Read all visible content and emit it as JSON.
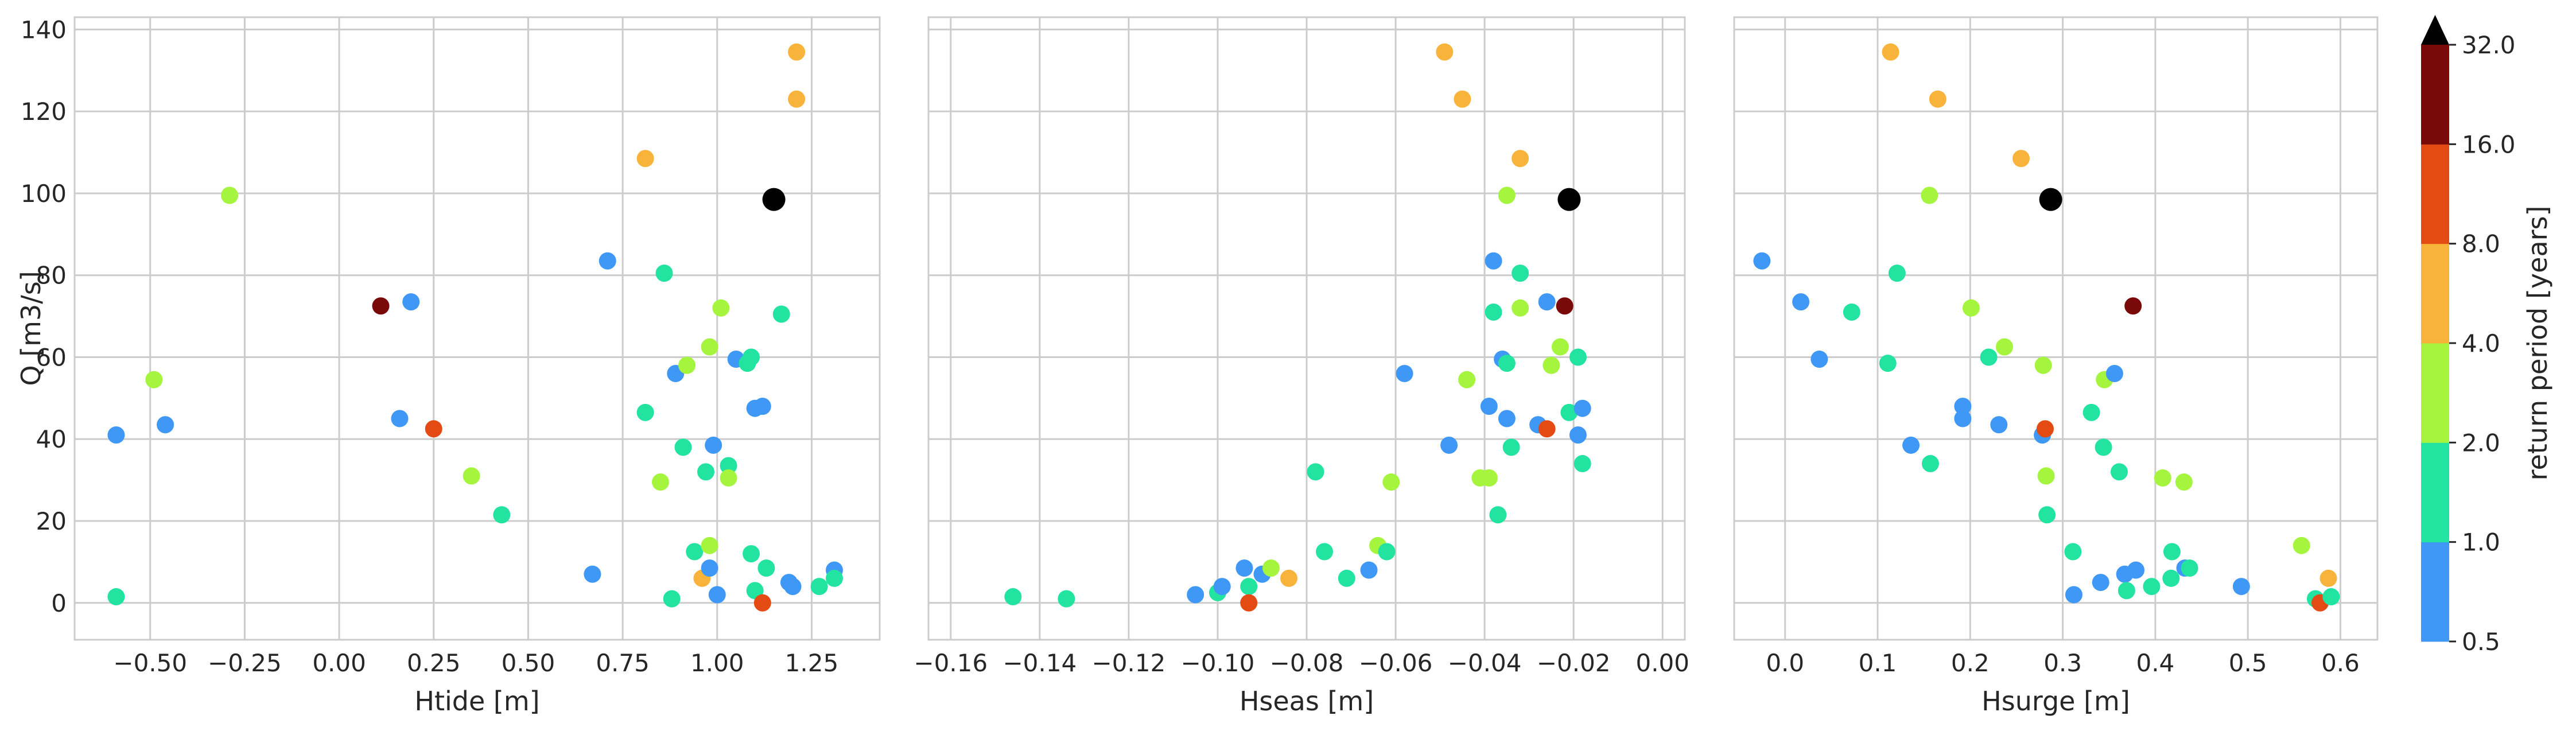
{
  "chart_data": {
    "type": "scatter",
    "ylabel": "Q [m3/s]",
    "ylim": [
      -9,
      143
    ],
    "yticks": [
      0,
      20,
      40,
      60,
      80,
      100,
      120,
      140
    ],
    "ytick_labels": [
      "0",
      "20",
      "40",
      "60",
      "80",
      "100",
      "120",
      "140"
    ],
    "panels": [
      {
        "xlabel": "Htide [m]",
        "xlim": [
          -0.7,
          1.43
        ],
        "xticks": [
          -0.5,
          -0.25,
          0.0,
          0.25,
          0.5,
          0.75,
          1.0,
          1.25
        ],
        "xtick_labels": [
          "−0.50",
          "−0.25",
          "0.00",
          "0.25",
          "0.50",
          "0.75",
          "1.00",
          "1.25"
        ],
        "points": [
          {
            "x": -0.59,
            "y": 1.5,
            "color": "#22e3a0"
          },
          {
            "x": -0.59,
            "y": 41,
            "color": "#3f98f5"
          },
          {
            "x": -0.49,
            "y": 54.5,
            "color": "#a5f53f"
          },
          {
            "x": -0.46,
            "y": 43.5,
            "color": "#3f98f5"
          },
          {
            "x": -0.29,
            "y": 99.5,
            "color": "#a5f53f"
          },
          {
            "x": 0.11,
            "y": 72.5,
            "color": "#7a0a0a"
          },
          {
            "x": 0.16,
            "y": 45,
            "color": "#3f98f5"
          },
          {
            "x": 0.19,
            "y": 73.5,
            "color": "#3f98f5"
          },
          {
            "x": 0.25,
            "y": 42.5,
            "color": "#e34a14"
          },
          {
            "x": 0.35,
            "y": 31,
            "color": "#a5f53f"
          },
          {
            "x": 0.43,
            "y": 21.5,
            "color": "#22e3a0"
          },
          {
            "x": 0.67,
            "y": 7,
            "color": "#3f98f5"
          },
          {
            "x": 0.71,
            "y": 83.5,
            "color": "#3f98f5"
          },
          {
            "x": 0.81,
            "y": 108.5,
            "color": "#f8b43a"
          },
          {
            "x": 0.81,
            "y": 46.5,
            "color": "#22e3a0"
          },
          {
            "x": 0.85,
            "y": 29.5,
            "color": "#a5f53f"
          },
          {
            "x": 0.86,
            "y": 80.5,
            "color": "#22e3a0"
          },
          {
            "x": 0.88,
            "y": 1,
            "color": "#22e3a0"
          },
          {
            "x": 0.89,
            "y": 56,
            "color": "#3f98f5"
          },
          {
            "x": 0.91,
            "y": 38,
            "color": "#22e3a0"
          },
          {
            "x": 0.92,
            "y": 58,
            "color": "#a5f53f"
          },
          {
            "x": 0.94,
            "y": 12.5,
            "color": "#22e3a0"
          },
          {
            "x": 0.96,
            "y": 6,
            "color": "#f8b43a"
          },
          {
            "x": 0.97,
            "y": 32,
            "color": "#22e3a0"
          },
          {
            "x": 0.98,
            "y": 62.5,
            "color": "#a5f53f"
          },
          {
            "x": 0.98,
            "y": 14,
            "color": "#a5f53f"
          },
          {
            "x": 0.98,
            "y": 8.5,
            "color": "#3f98f5"
          },
          {
            "x": 0.99,
            "y": 38.5,
            "color": "#3f98f5"
          },
          {
            "x": 1.0,
            "y": 2,
            "color": "#3f98f5"
          },
          {
            "x": 1.01,
            "y": 72,
            "color": "#a5f53f"
          },
          {
            "x": 1.03,
            "y": 33.5,
            "color": "#22e3a0"
          },
          {
            "x": 1.03,
            "y": 30.5,
            "color": "#a5f53f"
          },
          {
            "x": 1.05,
            "y": 59.5,
            "color": "#3f98f5"
          },
          {
            "x": 1.08,
            "y": 58.5,
            "color": "#22e3a0"
          },
          {
            "x": 1.09,
            "y": 60,
            "color": "#22e3a0"
          },
          {
            "x": 1.09,
            "y": 12,
            "color": "#22e3a0"
          },
          {
            "x": 1.1,
            "y": 47.5,
            "color": "#3f98f5"
          },
          {
            "x": 1.1,
            "y": 3,
            "color": "#22e3a0"
          },
          {
            "x": 1.12,
            "y": 48,
            "color": "#3f98f5"
          },
          {
            "x": 1.12,
            "y": 0,
            "color": "#e34a14"
          },
          {
            "x": 1.13,
            "y": 8.5,
            "color": "#22e3a0"
          },
          {
            "x": 1.15,
            "y": 98.5,
            "color": "#000000",
            "size": "large"
          },
          {
            "x": 1.17,
            "y": 70.5,
            "color": "#22e3a0"
          },
          {
            "x": 1.19,
            "y": 5,
            "color": "#3f98f5"
          },
          {
            "x": 1.2,
            "y": 4,
            "color": "#3f98f5"
          },
          {
            "x": 1.21,
            "y": 134.5,
            "color": "#f8b43a"
          },
          {
            "x": 1.21,
            "y": 123,
            "color": "#f8b43a"
          },
          {
            "x": 1.27,
            "y": 4,
            "color": "#22e3a0"
          },
          {
            "x": 1.31,
            "y": 8,
            "color": "#3f98f5"
          },
          {
            "x": 1.31,
            "y": 6,
            "color": "#22e3a0"
          }
        ]
      },
      {
        "xlabel": "Hseas [m]",
        "xlim": [
          -0.165,
          0.005
        ],
        "xticks": [
          -0.16,
          -0.14,
          -0.12,
          -0.1,
          -0.08,
          -0.06,
          -0.04,
          -0.02,
          0.0
        ],
        "xtick_labels": [
          "−0.16",
          "−0.14",
          "−0.12",
          "−0.10",
          "−0.08",
          "−0.06",
          "−0.04",
          "−0.02",
          "0.00"
        ],
        "points": [
          {
            "x": -0.146,
            "y": 1.5,
            "color": "#22e3a0"
          },
          {
            "x": -0.134,
            "y": 1,
            "color": "#22e3a0"
          },
          {
            "x": -0.105,
            "y": 2,
            "color": "#3f98f5"
          },
          {
            "x": -0.1,
            "y": 2.5,
            "color": "#22e3a0"
          },
          {
            "x": -0.099,
            "y": 4,
            "color": "#3f98f5"
          },
          {
            "x": -0.094,
            "y": 8.5,
            "color": "#3f98f5"
          },
          {
            "x": -0.093,
            "y": 4,
            "color": "#22e3a0"
          },
          {
            "x": -0.093,
            "y": 0,
            "color": "#e34a14"
          },
          {
            "x": -0.09,
            "y": 7,
            "color": "#3f98f5"
          },
          {
            "x": -0.088,
            "y": 8.5,
            "color": "#a5f53f"
          },
          {
            "x": -0.084,
            "y": 6,
            "color": "#f8b43a"
          },
          {
            "x": -0.078,
            "y": 32,
            "color": "#22e3a0"
          },
          {
            "x": -0.076,
            "y": 12.5,
            "color": "#22e3a0"
          },
          {
            "x": -0.071,
            "y": 6,
            "color": "#22e3a0"
          },
          {
            "x": -0.066,
            "y": 8,
            "color": "#3f98f5"
          },
          {
            "x": -0.064,
            "y": 14,
            "color": "#a5f53f"
          },
          {
            "x": -0.062,
            "y": 12.5,
            "color": "#22e3a0"
          },
          {
            "x": -0.061,
            "y": 29.5,
            "color": "#a5f53f"
          },
          {
            "x": -0.058,
            "y": 56,
            "color": "#3f98f5"
          },
          {
            "x": -0.049,
            "y": 134.5,
            "color": "#f8b43a"
          },
          {
            "x": -0.048,
            "y": 38.5,
            "color": "#3f98f5"
          },
          {
            "x": -0.045,
            "y": 123,
            "color": "#f8b43a"
          },
          {
            "x": -0.044,
            "y": 54.5,
            "color": "#a5f53f"
          },
          {
            "x": -0.041,
            "y": 30.5,
            "color": "#a5f53f"
          },
          {
            "x": -0.039,
            "y": 48,
            "color": "#3f98f5"
          },
          {
            "x": -0.039,
            "y": 30.5,
            "color": "#a5f53f"
          },
          {
            "x": -0.038,
            "y": 83.5,
            "color": "#3f98f5"
          },
          {
            "x": -0.038,
            "y": 71,
            "color": "#22e3a0"
          },
          {
            "x": -0.037,
            "y": 21.5,
            "color": "#22e3a0"
          },
          {
            "x": -0.036,
            "y": 59.5,
            "color": "#3f98f5"
          },
          {
            "x": -0.035,
            "y": 99.5,
            "color": "#a5f53f"
          },
          {
            "x": -0.035,
            "y": 45,
            "color": "#3f98f5"
          },
          {
            "x": -0.035,
            "y": 58.5,
            "color": "#22e3a0"
          },
          {
            "x": -0.034,
            "y": 38,
            "color": "#22e3a0"
          },
          {
            "x": -0.032,
            "y": 108.5,
            "color": "#f8b43a"
          },
          {
            "x": -0.032,
            "y": 80.5,
            "color": "#22e3a0"
          },
          {
            "x": -0.032,
            "y": 72,
            "color": "#a5f53f"
          },
          {
            "x": -0.028,
            "y": 43.5,
            "color": "#3f98f5"
          },
          {
            "x": -0.026,
            "y": 73.5,
            "color": "#3f98f5"
          },
          {
            "x": -0.026,
            "y": 42.5,
            "color": "#e34a14"
          },
          {
            "x": -0.025,
            "y": 58,
            "color": "#a5f53f"
          },
          {
            "x": -0.023,
            "y": 62.5,
            "color": "#a5f53f"
          },
          {
            "x": -0.022,
            "y": 72.5,
            "color": "#7a0a0a"
          },
          {
            "x": -0.021,
            "y": 98.5,
            "color": "#000000",
            "size": "large"
          },
          {
            "x": -0.021,
            "y": 46.5,
            "color": "#22e3a0"
          },
          {
            "x": -0.019,
            "y": 60,
            "color": "#22e3a0"
          },
          {
            "x": -0.019,
            "y": 41,
            "color": "#3f98f5"
          },
          {
            "x": -0.018,
            "y": 47.5,
            "color": "#3f98f5"
          },
          {
            "x": -0.018,
            "y": 34,
            "color": "#22e3a0"
          }
        ]
      },
      {
        "xlabel": "Hsurge [m]",
        "xlim": [
          -0.055,
          0.64
        ],
        "xticks": [
          0.0,
          0.1,
          0.2,
          0.3,
          0.4,
          0.5,
          0.6
        ],
        "xtick_labels": [
          "0.0",
          "0.1",
          "0.2",
          "0.3",
          "0.4",
          "0.5",
          "0.6"
        ],
        "points": [
          {
            "x": -0.025,
            "y": 83.5,
            "color": "#3f98f5"
          },
          {
            "x": 0.017,
            "y": 73.5,
            "color": "#3f98f5"
          },
          {
            "x": 0.037,
            "y": 59.5,
            "color": "#3f98f5"
          },
          {
            "x": 0.072,
            "y": 71,
            "color": "#22e3a0"
          },
          {
            "x": 0.111,
            "y": 58.5,
            "color": "#22e3a0"
          },
          {
            "x": 0.114,
            "y": 134.5,
            "color": "#f8b43a"
          },
          {
            "x": 0.121,
            "y": 80.5,
            "color": "#22e3a0"
          },
          {
            "x": 0.136,
            "y": 38.5,
            "color": "#3f98f5"
          },
          {
            "x": 0.156,
            "y": 99.5,
            "color": "#a5f53f"
          },
          {
            "x": 0.157,
            "y": 34,
            "color": "#22e3a0"
          },
          {
            "x": 0.165,
            "y": 123,
            "color": "#f8b43a"
          },
          {
            "x": 0.192,
            "y": 48,
            "color": "#3f98f5"
          },
          {
            "x": 0.192,
            "y": 45,
            "color": "#3f98f5"
          },
          {
            "x": 0.201,
            "y": 72,
            "color": "#a5f53f"
          },
          {
            "x": 0.22,
            "y": 60,
            "color": "#22e3a0"
          },
          {
            "x": 0.231,
            "y": 43.5,
            "color": "#3f98f5"
          },
          {
            "x": 0.237,
            "y": 62.5,
            "color": "#a5f53f"
          },
          {
            "x": 0.255,
            "y": 108.5,
            "color": "#f8b43a"
          },
          {
            "x": 0.278,
            "y": 41,
            "color": "#3f98f5"
          },
          {
            "x": 0.279,
            "y": 58,
            "color": "#a5f53f"
          },
          {
            "x": 0.281,
            "y": 42.5,
            "color": "#e34a14"
          },
          {
            "x": 0.282,
            "y": 31,
            "color": "#a5f53f"
          },
          {
            "x": 0.283,
            "y": 21.5,
            "color": "#22e3a0"
          },
          {
            "x": 0.287,
            "y": 98.5,
            "color": "#000000",
            "size": "large"
          },
          {
            "x": 0.311,
            "y": 12.5,
            "color": "#22e3a0"
          },
          {
            "x": 0.312,
            "y": 2,
            "color": "#3f98f5"
          },
          {
            "x": 0.331,
            "y": 46.5,
            "color": "#22e3a0"
          },
          {
            "x": 0.341,
            "y": 5,
            "color": "#3f98f5"
          },
          {
            "x": 0.344,
            "y": 38,
            "color": "#22e3a0"
          },
          {
            "x": 0.345,
            "y": 54.5,
            "color": "#a5f53f"
          },
          {
            "x": 0.356,
            "y": 56,
            "color": "#3f98f5"
          },
          {
            "x": 0.361,
            "y": 32,
            "color": "#22e3a0"
          },
          {
            "x": 0.367,
            "y": 7,
            "color": "#3f98f5"
          },
          {
            "x": 0.369,
            "y": 3,
            "color": "#22e3a0"
          },
          {
            "x": 0.376,
            "y": 72.5,
            "color": "#7a0a0a"
          },
          {
            "x": 0.379,
            "y": 8,
            "color": "#3f98f5"
          },
          {
            "x": 0.396,
            "y": 4,
            "color": "#22e3a0"
          },
          {
            "x": 0.408,
            "y": 30.5,
            "color": "#a5f53f"
          },
          {
            "x": 0.417,
            "y": 6,
            "color": "#22e3a0"
          },
          {
            "x": 0.418,
            "y": 12.5,
            "color": "#22e3a0"
          },
          {
            "x": 0.431,
            "y": 29.5,
            "color": "#a5f53f"
          },
          {
            "x": 0.432,
            "y": 8.5,
            "color": "#3f98f5"
          },
          {
            "x": 0.437,
            "y": 8.5,
            "color": "#22e3a0"
          },
          {
            "x": 0.493,
            "y": 4,
            "color": "#3f98f5"
          },
          {
            "x": 0.558,
            "y": 14,
            "color": "#a5f53f"
          },
          {
            "x": 0.573,
            "y": 1,
            "color": "#22e3a0"
          },
          {
            "x": 0.578,
            "y": 0,
            "color": "#e34a14"
          },
          {
            "x": 0.587,
            "y": 6,
            "color": "#f8b43a"
          },
          {
            "x": 0.59,
            "y": 1.5,
            "color": "#22e3a0"
          }
        ]
      }
    ],
    "colorbar": {
      "label": "return period [years]",
      "tick_labels": [
        "0.5",
        "1.0",
        "2.0",
        "4.0",
        "8.0",
        "16.0",
        "32.0"
      ],
      "colors": [
        "#3f98f5",
        "#22e3a0",
        "#a5f53f",
        "#f8b43a",
        "#e34a14",
        "#7a0a0a"
      ],
      "extend_color": "#000000",
      "extend": "max"
    },
    "grid": true
  }
}
